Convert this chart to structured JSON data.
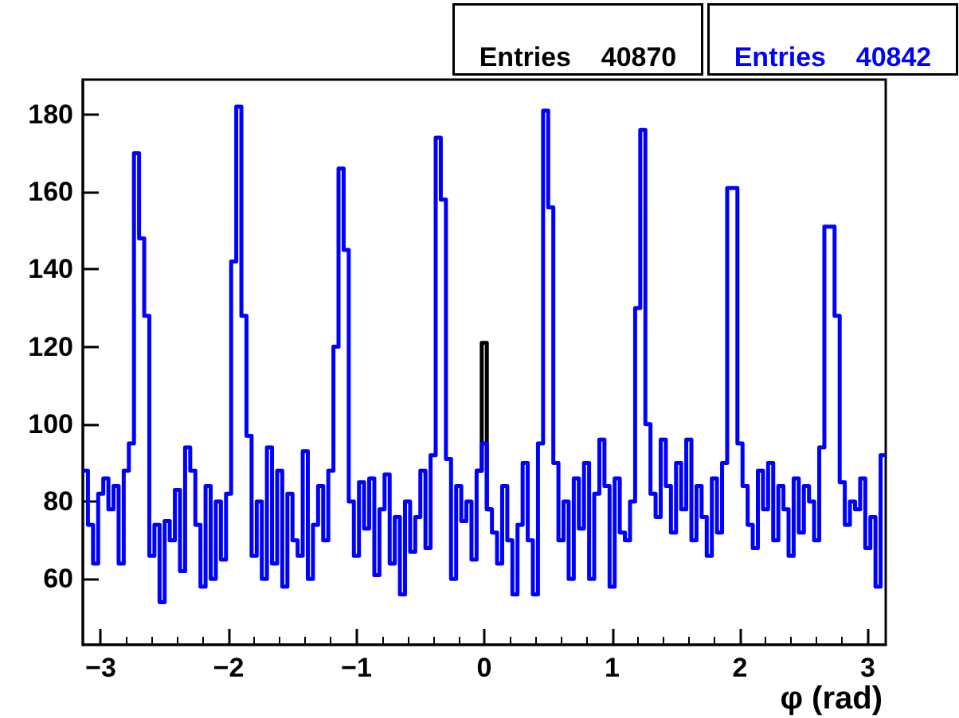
{
  "chart_data": {
    "type": "histogram",
    "xlabel": "φ (rad)",
    "annotations": [
      "Entries    40870",
      "Entries    40842"
    ],
    "bins": [
      -3.14,
      -3.1,
      -3.06,
      -3.02,
      -2.98,
      -2.94,
      -2.9,
      -2.86,
      -2.82,
      -2.78,
      -2.74,
      -2.7,
      -2.66,
      -2.62,
      -2.58,
      -2.54,
      -2.5,
      -2.46,
      -2.42,
      -2.38,
      -2.34,
      -2.3,
      -2.26,
      -2.22,
      -2.18,
      -2.14,
      -2.1,
      -2.06,
      -2.02,
      -1.98,
      -1.94,
      -1.9,
      -1.86,
      -1.82,
      -1.78,
      -1.74,
      -1.7,
      -1.66,
      -1.62,
      -1.58,
      -1.54,
      -1.5,
      -1.46,
      -1.42,
      -1.38,
      -1.34,
      -1.3,
      -1.26,
      -1.22,
      -1.18,
      -1.14,
      -1.1,
      -1.06,
      -1.02,
      -0.98,
      -0.94,
      -0.9,
      -0.86,
      -0.82,
      -0.78,
      -0.74,
      -0.7,
      -0.66,
      -0.62,
      -0.58,
      -0.54,
      -0.5,
      -0.46,
      -0.42,
      -0.38,
      -0.34,
      -0.3,
      -0.26,
      -0.22,
      -0.18,
      -0.14,
      -0.1,
      -0.06,
      -0.02,
      0.02,
      0.06,
      0.1,
      0.14,
      0.18,
      0.22,
      0.26,
      0.3,
      0.34,
      0.38,
      0.42,
      0.46,
      0.5,
      0.54,
      0.58,
      0.62,
      0.66,
      0.7,
      0.74,
      0.78,
      0.82,
      0.86,
      0.9,
      0.94,
      0.98,
      1.02,
      1.06,
      1.1,
      1.14,
      1.18,
      1.22,
      1.26,
      1.3,
      1.34,
      1.38,
      1.42,
      1.46,
      1.5,
      1.54,
      1.58,
      1.62,
      1.66,
      1.7,
      1.74,
      1.78,
      1.82,
      1.86,
      1.9,
      1.94,
      1.98,
      2.02,
      2.06,
      2.1,
      2.14,
      2.18,
      2.22,
      2.26,
      2.3,
      2.34,
      2.38,
      2.42,
      2.46,
      2.5,
      2.54,
      2.58,
      2.62,
      2.66,
      2.7,
      2.74,
      2.78,
      2.82,
      2.86,
      2.9,
      2.94,
      2.98,
      3.02,
      3.06,
      3.1,
      3.14
    ],
    "series": [
      {
        "color": "#000000",
        "bins": [
          -0.06,
          -0.02,
          0.02,
          0.06
        ],
        "values": [
          88,
          121,
          78
        ]
      },
      {
        "color": "#0000ff",
        "values": [
          88,
          74,
          64,
          82,
          86,
          78,
          84,
          64,
          88,
          95,
          170,
          148,
          128,
          66,
          74,
          54,
          75,
          70,
          83,
          62,
          94,
          88,
          74,
          58,
          84,
          60,
          80,
          65,
          82,
          142,
          182,
          128,
          97,
          66,
          80,
          60,
          94,
          64,
          88,
          58,
          82,
          70,
          66,
          93,
          60,
          74,
          84,
          70,
          88,
          120,
          166,
          145,
          80,
          66,
          85,
          73,
          86,
          61,
          78,
          87,
          64,
          76,
          56,
          80,
          67,
          76,
          88,
          68,
          92,
          174,
          158,
          91,
          60,
          84,
          75,
          80,
          65,
          88,
          95,
          78,
          72,
          64,
          84,
          70,
          56,
          74,
          90,
          70,
          56,
          95,
          181,
          156,
          90,
          70,
          80,
          60,
          86,
          73,
          90,
          60,
          82,
          96,
          84,
          58,
          86,
          72,
          70,
          80,
          130,
          176,
          100,
          82,
          76,
          96,
          84,
          72,
          90,
          78,
          96,
          70,
          84,
          76,
          66,
          86,
          72,
          90,
          161,
          161,
          95,
          84,
          74,
          68,
          88,
          78,
          90,
          70,
          84,
          78,
          66,
          86,
          72,
          84,
          80,
          70,
          94,
          151,
          151,
          128,
          85,
          74,
          80,
          78,
          86,
          68,
          76,
          58,
          92
        ]
      }
    ],
    "xlim": [
      -3.14,
      3.14
    ],
    "xticks": [
      -3,
      -2,
      -1,
      0,
      1,
      2,
      3
    ],
    "ylim": [
      43,
      189
    ],
    "yticks": [
      60,
      80,
      100,
      120,
      140,
      160,
      180
    ],
    "grid": false
  }
}
